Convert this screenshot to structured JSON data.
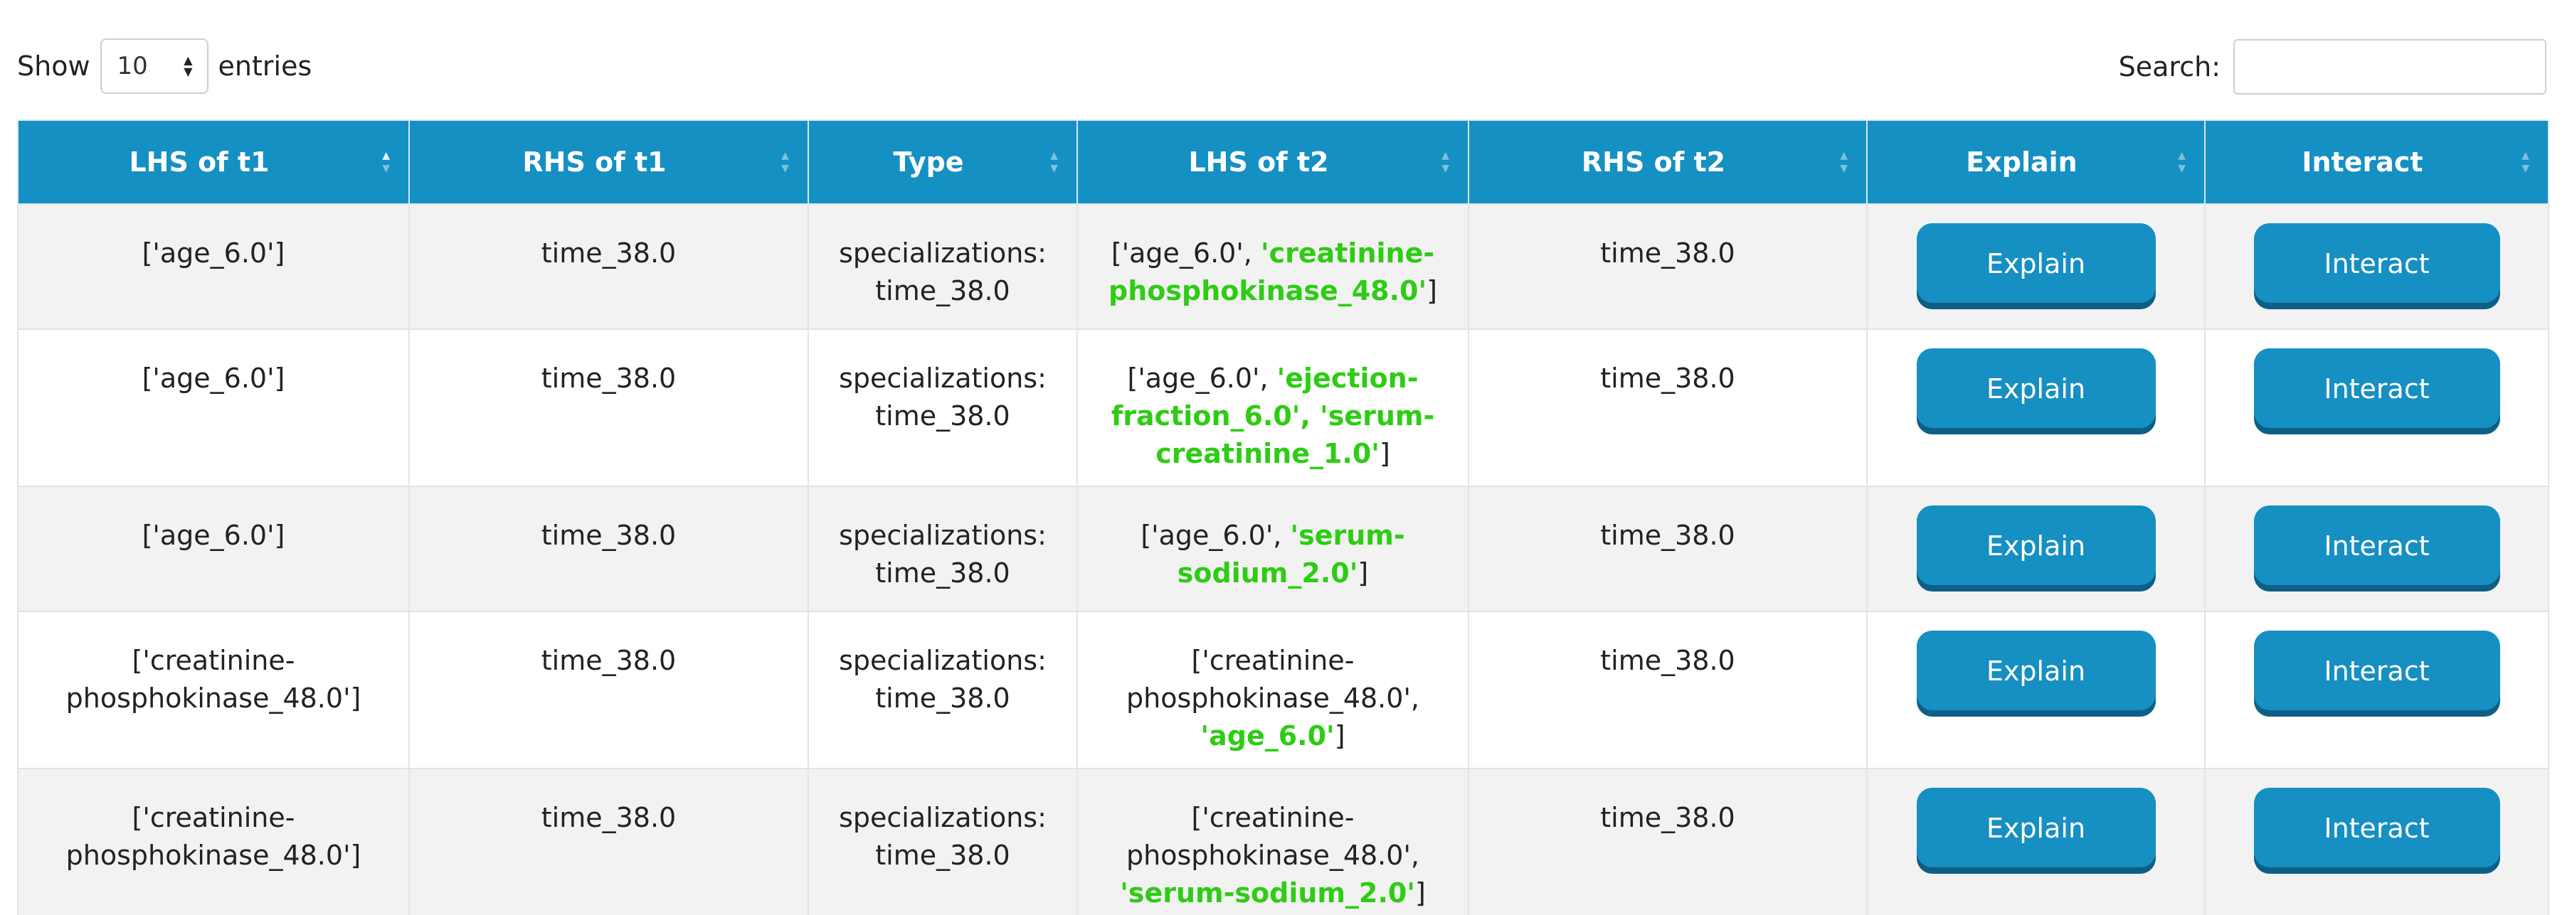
{
  "length_menu": {
    "show_label": "Show",
    "value": "10",
    "entries_label": "entries"
  },
  "search": {
    "label": "Search:",
    "value": ""
  },
  "table": {
    "headers": [
      "LHS of t1",
      "RHS of t1",
      "Type",
      "LHS of t2",
      "RHS of t2",
      "Explain",
      "Interact"
    ],
    "rows": [
      {
        "lhs_t1": "['age_6.0']",
        "rhs_t1": "time_38.0",
        "type": "specializations: time_38.0",
        "lhs_t2_prefix": "['age_6.0', ",
        "lhs_t2_highlight": "'creatinine-phosphokinase_48.0'",
        "lhs_t2_suffix": "]",
        "rhs_t2": "time_38.0",
        "explain_label": "Explain",
        "interact_label": "Interact"
      },
      {
        "lhs_t1": "['age_6.0']",
        "rhs_t1": "time_38.0",
        "type": "specializations: time_38.0",
        "lhs_t2_prefix": "['age_6.0', ",
        "lhs_t2_highlight": "'ejection-fraction_6.0', 'serum-creatinine_1.0'",
        "lhs_t2_suffix": "]",
        "rhs_t2": "time_38.0",
        "explain_label": "Explain",
        "interact_label": "Interact"
      },
      {
        "lhs_t1": "['age_6.0']",
        "rhs_t1": "time_38.0",
        "type": "specializations: time_38.0",
        "lhs_t2_prefix": "['age_6.0', ",
        "lhs_t2_highlight": "'serum-sodium_2.0'",
        "lhs_t2_suffix": "]",
        "rhs_t2": "time_38.0",
        "explain_label": "Explain",
        "interact_label": "Interact"
      },
      {
        "lhs_t1": "['creatinine-phosphokinase_48.0']",
        "rhs_t1": "time_38.0",
        "type": "specializations: time_38.0",
        "lhs_t2_prefix": "['creatinine-phosphokinase_48.0', ",
        "lhs_t2_highlight": "'age_6.0'",
        "lhs_t2_suffix": "]",
        "rhs_t2": "time_38.0",
        "explain_label": "Explain",
        "interact_label": "Interact"
      },
      {
        "lhs_t1": "['creatinine-phosphokinase_48.0']",
        "rhs_t1": "time_38.0",
        "type": "specializations: time_38.0",
        "lhs_t2_prefix": "['creatinine-phosphokinase_48.0', ",
        "lhs_t2_highlight": "'serum-sodium_2.0'",
        "lhs_t2_suffix": "]",
        "rhs_t2": "time_38.0",
        "explain_label": "Explain",
        "interact_label": "Interact"
      }
    ]
  },
  "colors": {
    "header_bg": "#1590c3",
    "button_bg": "#168fc2",
    "highlight": "#2ecc14",
    "row_stripe": "#f2f2f2"
  },
  "icons": {
    "sort": "sort-arrows-icon",
    "select": "select-arrows-icon"
  }
}
